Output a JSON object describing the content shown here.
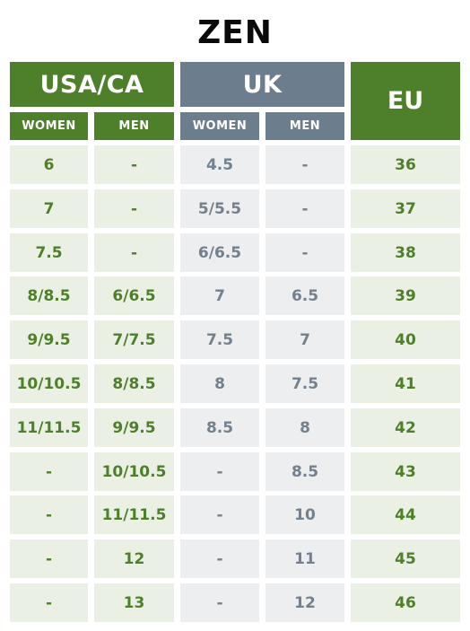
{
  "title": "ZEN",
  "headers": {
    "usa_ca": "USA/CA",
    "uk": "UK",
    "eu": "EU",
    "usa_women": "WOMEN",
    "usa_men": "MEN",
    "uk_women": "WOMEN",
    "uk_men": "MEN"
  },
  "colors": {
    "green": "#4e7f2a",
    "gray": "#6c7d8e",
    "light_green": "#eaf1e4",
    "light_gray": "#eceef0"
  },
  "rows": [
    {
      "usa_women": "6",
      "usa_men": "-",
      "uk_women": "4.5",
      "uk_men": "-",
      "eu": "36"
    },
    {
      "usa_women": "7",
      "usa_men": "-",
      "uk_women": "5/5.5",
      "uk_men": "-",
      "eu": "37"
    },
    {
      "usa_women": "7.5",
      "usa_men": "-",
      "uk_women": "6/6.5",
      "uk_men": "-",
      "eu": "38"
    },
    {
      "usa_women": "8/8.5",
      "usa_men": "6/6.5",
      "uk_women": "7",
      "uk_men": "6.5",
      "eu": "39"
    },
    {
      "usa_women": "9/9.5",
      "usa_men": "7/7.5",
      "uk_women": "7.5",
      "uk_men": "7",
      "eu": "40"
    },
    {
      "usa_women": "10/10.5",
      "usa_men": "8/8.5",
      "uk_women": "8",
      "uk_men": "7.5",
      "eu": "41"
    },
    {
      "usa_women": "11/11.5",
      "usa_men": "9/9.5",
      "uk_women": "8.5",
      "uk_men": "8",
      "eu": "42"
    },
    {
      "usa_women": "-",
      "usa_men": "10/10.5",
      "uk_women": "-",
      "uk_men": "8.5",
      "eu": "43"
    },
    {
      "usa_women": "-",
      "usa_men": "11/11.5",
      "uk_women": "-",
      "uk_men": "10",
      "eu": "44"
    },
    {
      "usa_women": "-",
      "usa_men": "12",
      "uk_women": "-",
      "uk_men": "11",
      "eu": "45"
    },
    {
      "usa_women": "-",
      "usa_men": "13",
      "uk_women": "-",
      "uk_men": "12",
      "eu": "46"
    }
  ]
}
